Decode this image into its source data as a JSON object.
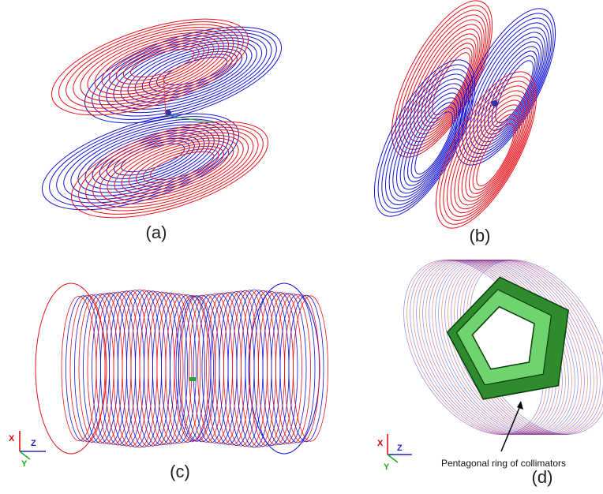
{
  "panels": [
    {
      "label": "(a)"
    },
    {
      "label": "(b)"
    },
    {
      "label": "(c)",
      "axes": {
        "x": "X",
        "z": "Z",
        "y": "Y"
      }
    },
    {
      "label": "(d)",
      "axes": {
        "x": "X",
        "z": "Z",
        "y": "Y"
      },
      "annotation": "Pentagonal ring of collimators"
    }
  ]
}
